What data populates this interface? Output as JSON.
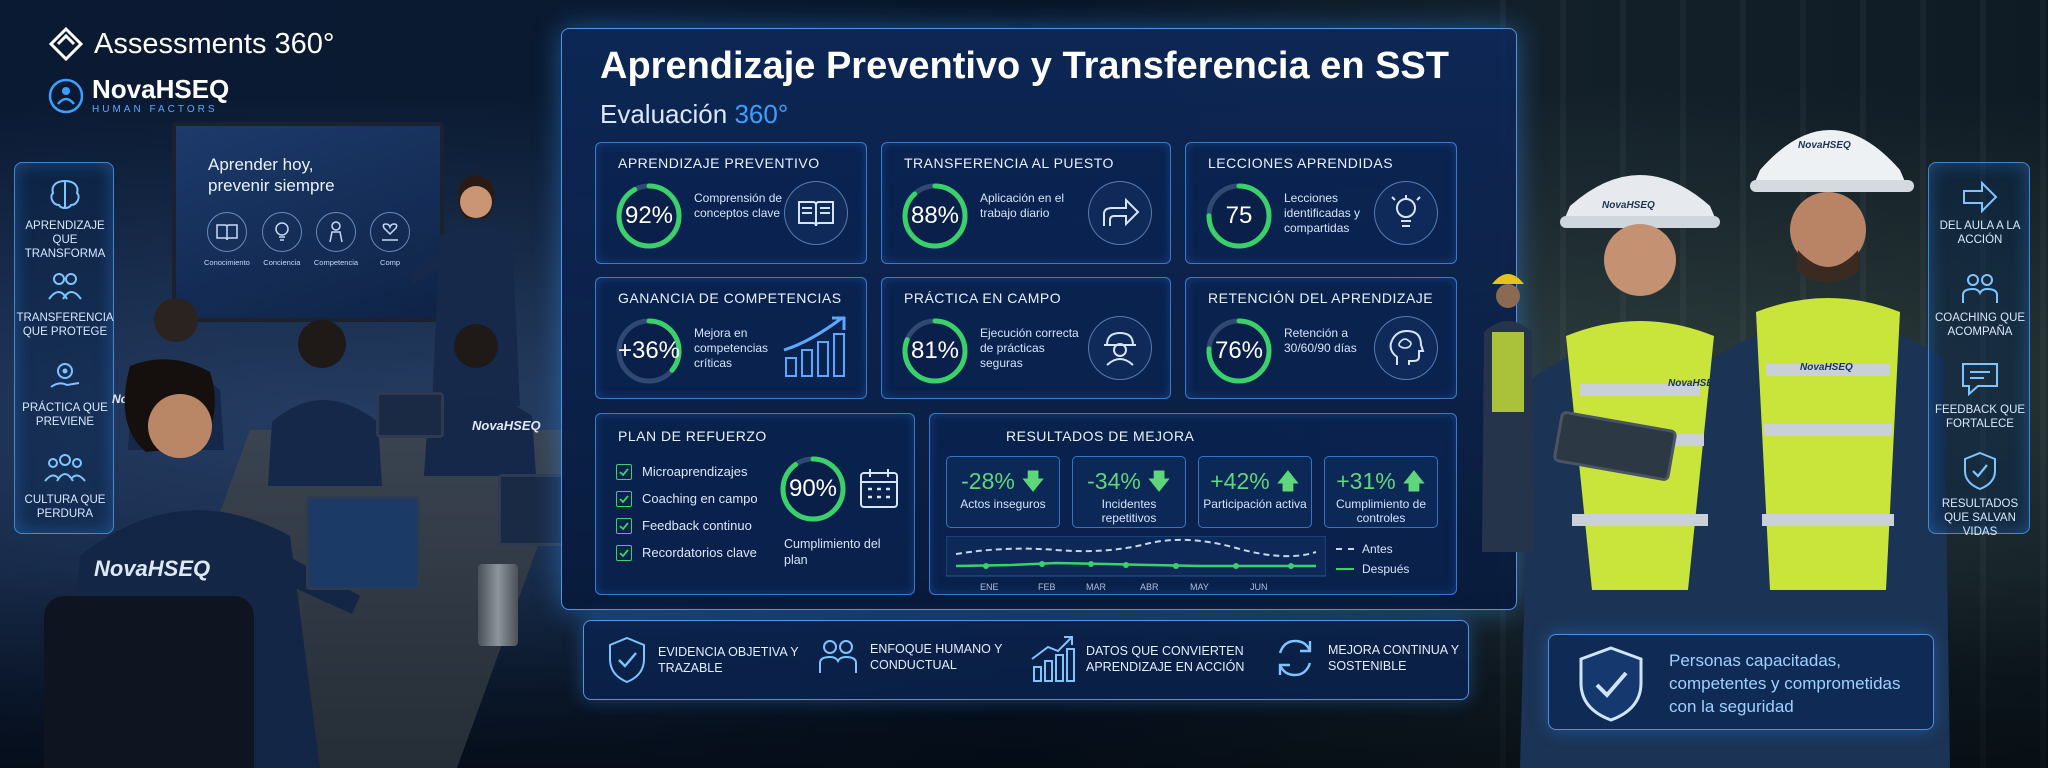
{
  "brand": {
    "title": "Assessments 360°",
    "company": "NovaHSEQ",
    "company_tagline": "HUMAN FACTORS"
  },
  "left_panel": {
    "items": [
      {
        "label": "APRENDIZAJE QUE TRANSFORMA",
        "icon": "brain-icon"
      },
      {
        "label": "TRANSFERENCIA QUE PROTEGE",
        "icon": "people-icon"
      },
      {
        "label": "PRÁCTICA QUE PREVIENE",
        "icon": "gear-hand-icon"
      },
      {
        "label": "CULTURA QUE PERDURA",
        "icon": "group-icon"
      }
    ]
  },
  "scene": {
    "screen_title": "Aprender hoy, prevenir siempre",
    "screen_icons": [
      "Conocimiento",
      "Conciencia",
      "Competencia",
      "Comp"
    ],
    "shirt_label": "NovaHSEQ"
  },
  "dashboard": {
    "title": "Aprendizaje Preventivo y Transferencia en SST",
    "subtitle_prefix": "Evaluación",
    "subtitle_accent": "360°",
    "cards": [
      {
        "title": "APRENDIZAJE PREVENTIVO",
        "value": "92%",
        "fraction": 0.92,
        "desc": "Comprensión de conceptos clave",
        "icon": "book-icon"
      },
      {
        "title": "TRANSFERENCIA AL PUESTO",
        "value": "88%",
        "fraction": 0.88,
        "desc": "Aplicación en el trabajo diario",
        "icon": "share-arrow-icon"
      },
      {
        "title": "LECCIONES APRENDIDAS",
        "value": "75",
        "fraction": 0.75,
        "desc": "Lecciones identificadas y compartidas",
        "icon": "lightbulb-icon"
      },
      {
        "title": "GANANCIA DE COMPETENCIAS",
        "value": "+36%",
        "fraction": 0.36,
        "desc": "Mejora en competencias críticas",
        "icon": "growth-chart-icon"
      },
      {
        "title": "PRÁCTICA EN CAMPO",
        "value": "81%",
        "fraction": 0.81,
        "desc": "Ejecución correcta de prácticas seguras",
        "icon": "hardhat-worker-icon"
      },
      {
        "title": "RETENCIÓN DEL APRENDIZAJE",
        "value": "76%",
        "fraction": 0.76,
        "desc": "Retención a 30/60/90 días",
        "icon": "head-brain-icon"
      }
    ],
    "plan": {
      "title": "PLAN DE REFUERZO",
      "items": [
        "Microaprendizajes",
        "Coaching en campo",
        "Feedback continuo",
        "Recordatorios clave"
      ],
      "value": "90%",
      "fraction": 0.9,
      "caption": "Cumplimiento del plan",
      "icon": "calendar-icon"
    },
    "results": {
      "title": "RESULTADOS DE MEJORA",
      "items": [
        {
          "value": "-28%",
          "label": "Actos inseguros",
          "direction": "down"
        },
        {
          "value": "-34%",
          "label": "Incidentes repetitivos",
          "direction": "down"
        },
        {
          "value": "+42%",
          "label": "Participación activa",
          "direction": "up"
        },
        {
          "value": "+31%",
          "label": "Cumplimiento de controles",
          "direction": "up"
        }
      ],
      "chart": {
        "months": [
          "ENE",
          "FEB",
          "MAR",
          "ABR",
          "MAY",
          "JUN"
        ],
        "legend_before": "Antes",
        "legend_after": "Después"
      }
    }
  },
  "bottom_bar": {
    "features": [
      {
        "label": "EVIDENCIA OBJETIVA Y TRAZABLE",
        "icon": "shield-check-icon"
      },
      {
        "label": "ENFOQUE HUMANO Y CONDUCTUAL",
        "icon": "people-icon"
      },
      {
        "label": "DATOS QUE CONVIERTEN APRENDIZAJE EN ACCIÓN",
        "icon": "bar-chart-icon"
      },
      {
        "label": "MEJORA CONTINUA Y SOSTENIBLE",
        "icon": "cycle-icon"
      }
    ]
  },
  "right_panel": {
    "items": [
      {
        "label": "DEL AULA A LA ACCIÓN",
        "icon": "arrow-right-icon"
      },
      {
        "label": "COACHING QUE ACOMPAÑA",
        "icon": "people-icon"
      },
      {
        "label": "FEEDBACK QUE FORTALECE",
        "icon": "chat-icon"
      },
      {
        "label": "RESULTADOS QUE SALVAN VIDAS",
        "icon": "shield-check-icon"
      }
    ]
  },
  "tagline": {
    "text": "Personas capacitadas, competentes y comprometidas con la seguridad"
  },
  "colors": {
    "accent": "#3aa0ff",
    "green": "#3ad16a",
    "panel_border": "#50aaff"
  }
}
